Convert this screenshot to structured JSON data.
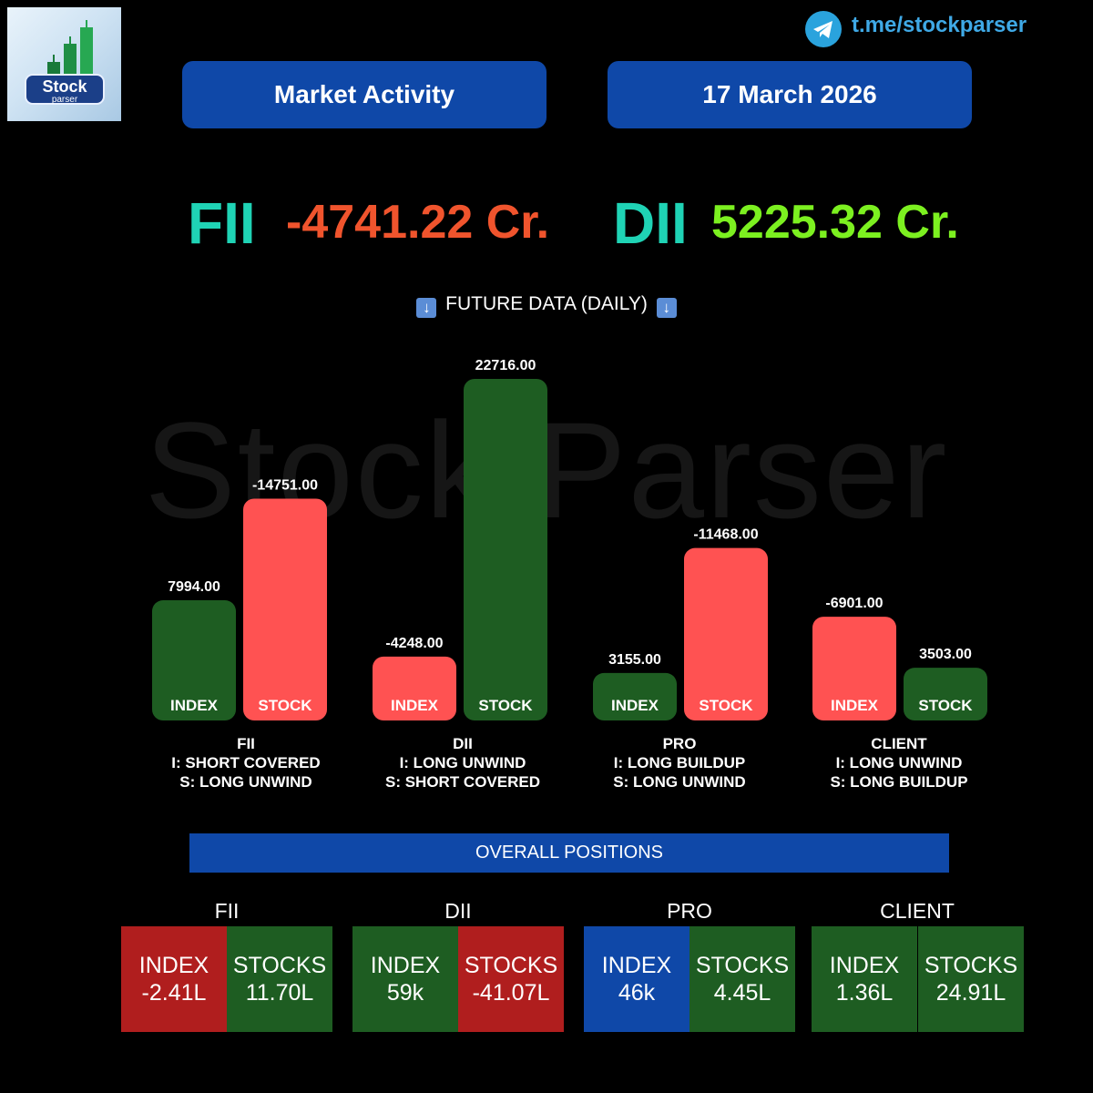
{
  "header": {
    "brand_line1": "Stock",
    "brand_line2": "parser",
    "telegram": "t.me/stockparser",
    "title": "Market Activity",
    "date": "17 March 2026"
  },
  "cash": {
    "fii_label": "FII",
    "fii_value": "-4741.22 Cr.",
    "dii_label": "DII",
    "dii_value": "5225.32 Cr."
  },
  "section_title": "FUTURE DATA (DAILY)",
  "watermark": "Stock Parser",
  "chart_data": {
    "type": "bar",
    "title": "FUTURE DATA (DAILY)",
    "categories": [
      "FII",
      "DII",
      "PRO",
      "CLIENT"
    ],
    "bar_labels": [
      "INDEX",
      "STOCK"
    ],
    "series": [
      {
        "name": "INDEX",
        "values": [
          7994.0,
          -4248.0,
          3155.0,
          -6901.0
        ]
      },
      {
        "name": "STOCK",
        "values": [
          -14751.0,
          22716.0,
          -11468.0,
          3503.0
        ]
      }
    ],
    "value_labels": {
      "INDEX": [
        "7994.00",
        "-4248.00",
        "3155.00",
        "-6901.00"
      ],
      "STOCK": [
        "-14751.00",
        "22716.00",
        "-11468.00",
        "3503.00"
      ]
    },
    "bar_height_by": "absolute value",
    "colors": {
      "positive": "#1e5d22",
      "negative": "#ff5252"
    },
    "group_notes": [
      {
        "name": "FII",
        "index": "I: SHORT COVERED",
        "stock": "S: LONG UNWIND"
      },
      {
        "name": "DII",
        "index": "I: LONG UNWIND",
        "stock": "S: SHORT COVERED"
      },
      {
        "name": "PRO",
        "index": "I: LONG BUILDUP",
        "stock": "S: LONG UNWIND"
      },
      {
        "name": "CLIENT",
        "index": "I: LONG UNWIND",
        "stock": "S: LONG BUILDUP"
      }
    ]
  },
  "overall": {
    "title": "OVERALL POSITIONS",
    "groups": [
      {
        "name": "FII",
        "index_label": "INDEX",
        "index_value": "-2.41L",
        "index_color": "#b01e1e",
        "stocks_label": "STOCKS",
        "stocks_value": "11.70L",
        "stocks_color": "#1e5d22"
      },
      {
        "name": "DII",
        "index_label": "INDEX",
        "index_value": "59k",
        "index_color": "#1e5d22",
        "stocks_label": "STOCKS",
        "stocks_value": "-41.07L",
        "stocks_color": "#b01e1e"
      },
      {
        "name": "PRO",
        "index_label": "INDEX",
        "index_value": "46k",
        "index_color": "#0f48a8",
        "stocks_label": "STOCKS",
        "stocks_value": "4.45L",
        "stocks_color": "#1e5d22"
      },
      {
        "name": "CLIENT",
        "index_label": "INDEX",
        "index_value": "1.36L",
        "index_color": "#1e5d22",
        "stocks_label": "STOCKS",
        "stocks_value": "24.91L",
        "stocks_color": "#1e5d22"
      }
    ]
  },
  "colors": {
    "accent_blue": "#0f48a8",
    "fii_label": "#1fd3b5",
    "negative": "#f0542d",
    "positive": "#7cf020"
  }
}
